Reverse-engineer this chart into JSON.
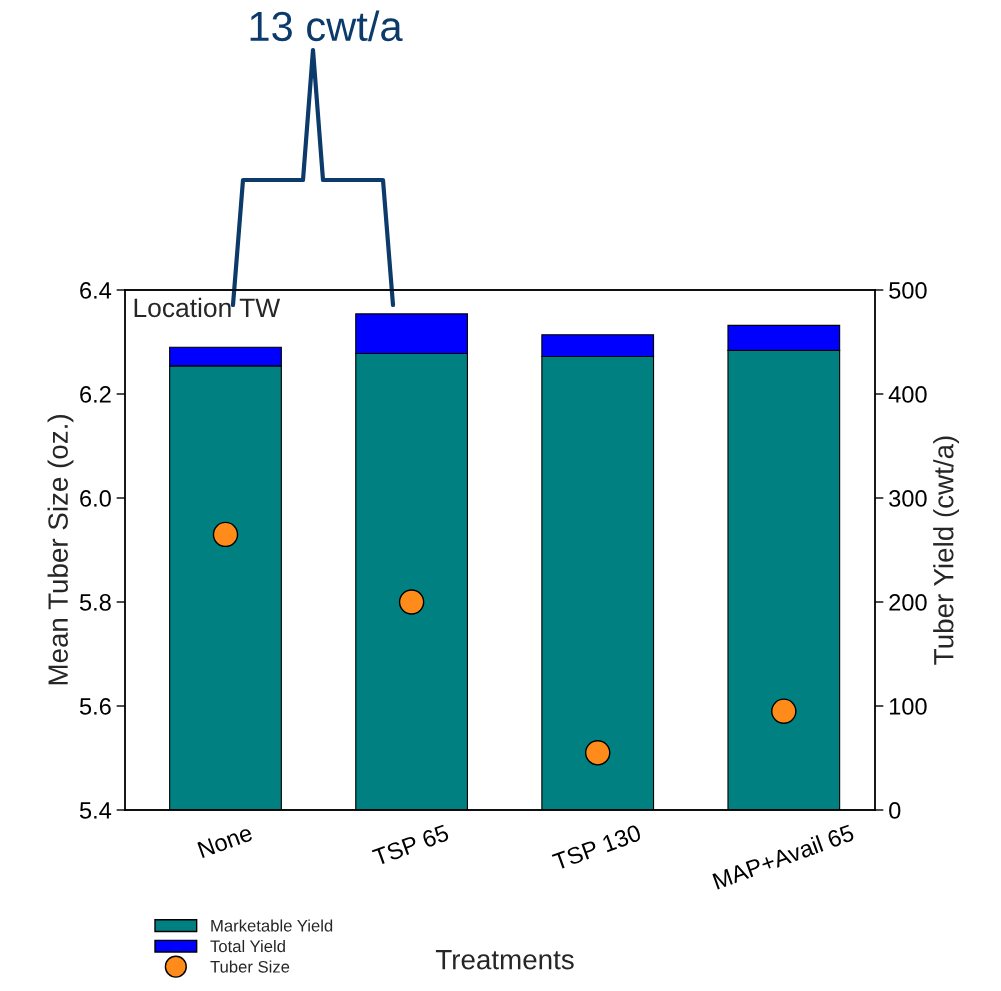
{
  "chart_data": {
    "type": "bar",
    "stacked": true,
    "categories": [
      "None",
      "TSP 65",
      "TSP 130",
      "MAP+Avail 65"
    ],
    "series": [
      {
        "name": "Marketable Yield",
        "axis": "y2",
        "color": "#008080",
        "values": [
          427,
          439,
          436,
          442
        ]
      },
      {
        "name": "Total Yield",
        "axis": "y2",
        "color": "#0000ff",
        "values": [
          18,
          38,
          21,
          24
        ]
      },
      {
        "name": "Tuber Size",
        "type": "scatter",
        "axis": "y",
        "color": "#ff8c1a",
        "values": [
          5.93,
          5.8,
          5.51,
          5.59
        ]
      }
    ],
    "xlabel": "Treatments",
    "ylabel": "Mean Tuber Size (oz.)",
    "y2label": "Tuber Yield (cwt/a)",
    "ylim": [
      5.4,
      6.4
    ],
    "yticks": [
      {
        "value": 5.4,
        "label": "5.4"
      },
      {
        "value": 5.6,
        "label": "5.6"
      },
      {
        "value": 5.8,
        "label": "5.8"
      },
      {
        "value": 6.0,
        "label": "6.0"
      },
      {
        "value": 6.2,
        "label": "6.2"
      },
      {
        "value": 6.4,
        "label": "6.4"
      }
    ],
    "y2lim": [
      0,
      500
    ],
    "y2ticks": [
      0,
      100,
      200,
      300,
      400,
      500
    ],
    "annotations": [
      "Location TW",
      "13 cwt/a"
    ],
    "marker": "circle",
    "legend": "bottom left",
    "grid": false
  }
}
